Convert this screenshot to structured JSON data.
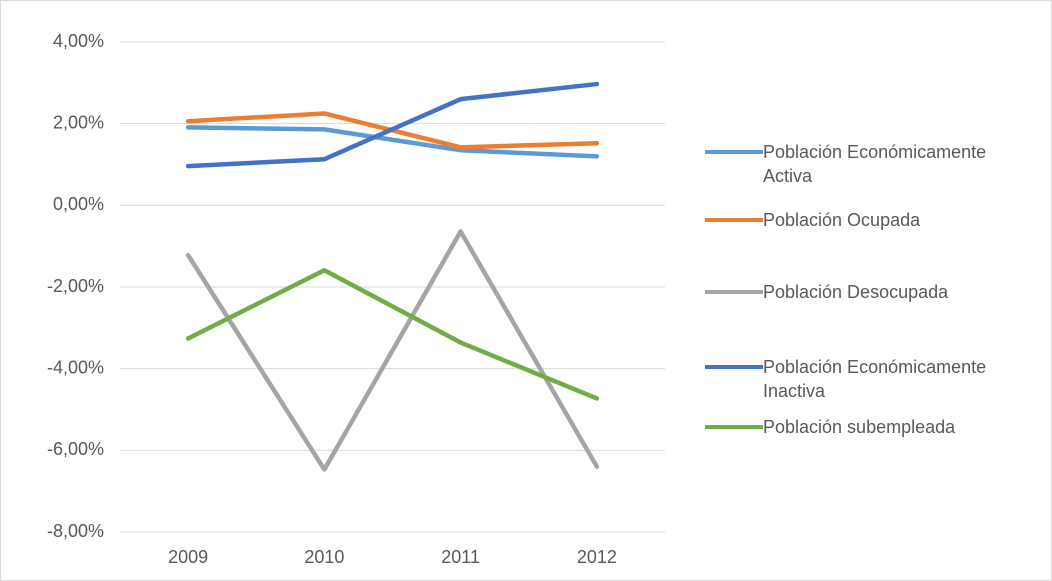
{
  "chart_data": {
    "type": "line",
    "categories": [
      "2009",
      "2010",
      "2011",
      "2012"
    ],
    "ylim": [
      -8,
      4
    ],
    "yticks": [
      {
        "value": -8,
        "label": "-8,00%"
      },
      {
        "value": -6,
        "label": "-6,00%"
      },
      {
        "value": -4,
        "label": "-4,00%"
      },
      {
        "value": -2,
        "label": "-2,00%"
      },
      {
        "value": 0,
        "label": "0,00%"
      },
      {
        "value": 2,
        "label": "2,00%"
      },
      {
        "value": 4,
        "label": "4,00%"
      }
    ],
    "grid": true,
    "legend": "right",
    "series": [
      {
        "name": "Población Económicamente Activa",
        "color": "#5b9bd5",
        "values": [
          1.91,
          1.86,
          1.35,
          1.2
        ]
      },
      {
        "name": "Población Ocupada",
        "color": "#ed7d31",
        "values": [
          2.06,
          2.25,
          1.42,
          1.52
        ]
      },
      {
        "name": "Población Desocupada",
        "color": "#a5a5a5",
        "values": [
          -1.22,
          -6.47,
          -0.64,
          -6.4
        ]
      },
      {
        "name": "Población Económicamente Inactiva",
        "color": "#4472c4",
        "values": [
          0.96,
          1.13,
          2.6,
          2.97
        ]
      },
      {
        "name": "Población subempleada",
        "color": "#70ad47",
        "values": [
          -3.26,
          -1.59,
          -3.36,
          -4.73
        ]
      }
    ]
  }
}
